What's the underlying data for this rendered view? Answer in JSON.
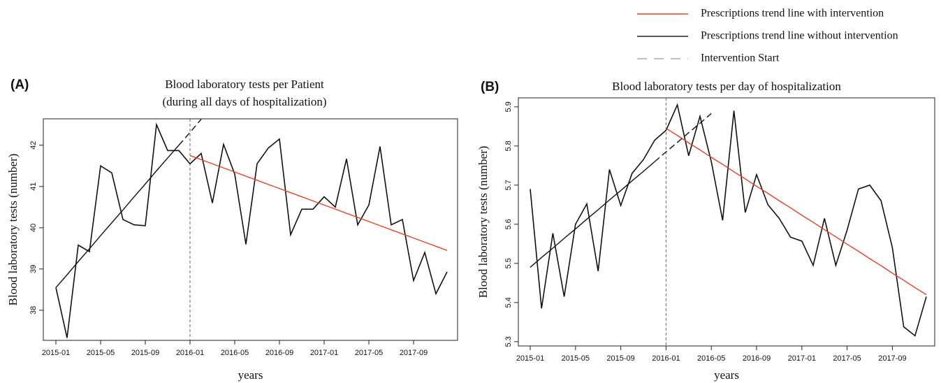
{
  "legend": [
    {
      "label": "Prescriptions trend line with intervention",
      "color": "#e8412c",
      "dash": false
    },
    {
      "label": "Prescriptions trend line without intervention",
      "color": "#222222",
      "dash": false
    },
    {
      "label": "Intervention Start",
      "color": "#aaaaaa",
      "dash": true
    }
  ],
  "chart_data": [
    {
      "type": "line",
      "panel": "(A)",
      "title": [
        "Blood laboratory tests per Patient",
        "(during all days of hospitalization)"
      ],
      "xlabel": "years",
      "ylabel": "Blood laboratory tests (number)",
      "categories": [
        "2015-01",
        null,
        null,
        null,
        "2015-05",
        null,
        null,
        null,
        "2015-09",
        null,
        null,
        null,
        "2016-01",
        null,
        null,
        null,
        "2016-05",
        null,
        null,
        null,
        "2016-09",
        null,
        null,
        null,
        "2017-01",
        null,
        null,
        null,
        "2017-05",
        null,
        null,
        null,
        "2017-09",
        null,
        null,
        null
      ],
      "intervention": "2016-01",
      "ylim": [
        37.27,
        42.64
      ],
      "yticks": [
        38,
        39,
        40,
        41,
        42
      ],
      "series": [
        {
          "color": "#111111",
          "dash": false,
          "values": [
            38.55,
            37.33,
            39.58,
            39.42,
            41.5,
            41.33,
            40.2,
            40.07,
            40.05,
            42.5,
            41.87,
            41.87,
            41.55,
            41.8,
            40.6,
            42.02,
            41.3,
            39.6,
            41.55,
            41.93,
            42.15,
            39.83,
            40.45,
            40.45,
            40.75,
            40.5,
            41.67,
            40.07,
            40.55,
            41.97,
            40.07,
            40.2,
            38.72,
            39.4,
            38.4,
            38.93
          ]
        },
        {
          "color": "#e8412c",
          "dash": false,
          "values": [
            null,
            null,
            null,
            null,
            null,
            null,
            null,
            null,
            null,
            null,
            null,
            null,
            41.75,
            41.65,
            41.55,
            41.45,
            41.35,
            41.25,
            41.15,
            41.05,
            40.95,
            40.85,
            40.75,
            40.65,
            40.55,
            40.45,
            40.35,
            40.25,
            40.15,
            40.05,
            39.95,
            39.85,
            39.75,
            39.65,
            39.55,
            39.45
          ]
        },
        {
          "color": "#111111",
          "dash": false,
          "values": [
            38.55,
            38.86,
            39.18,
            39.49,
            39.81,
            40.12,
            40.43,
            40.75,
            41.06,
            41.38,
            41.69,
            42.0,
            null,
            null,
            null,
            null,
            null,
            null,
            null,
            null,
            null,
            null,
            null,
            null,
            null,
            null,
            null,
            null,
            null,
            null,
            null,
            null,
            null,
            null,
            null,
            null
          ]
        },
        {
          "color": "#111111",
          "dash": true,
          "values": [
            null,
            null,
            null,
            null,
            null,
            null,
            null,
            null,
            null,
            null,
            null,
            42.0,
            42.31,
            42.63,
            null,
            null,
            null,
            null,
            null,
            null,
            null,
            null,
            null,
            null,
            null,
            null,
            null,
            null,
            null,
            null,
            null,
            null,
            null,
            null,
            null,
            null
          ]
        }
      ]
    },
    {
      "type": "line",
      "panel": "(B)",
      "title": [
        "Blood laboratory tests per day of hospitalization"
      ],
      "xlabel": "years",
      "ylabel": "Blood laboratory tests (number)",
      "categories": [
        "2015-01",
        null,
        null,
        null,
        "2015-05",
        null,
        null,
        null,
        "2015-09",
        null,
        null,
        null,
        "2016-01",
        null,
        null,
        null,
        "2016-05",
        null,
        null,
        null,
        "2016-09",
        null,
        null,
        null,
        "2017-01",
        null,
        null,
        null,
        "2017-05",
        null,
        null,
        null,
        "2017-09",
        null,
        null,
        null
      ],
      "intervention": "2016-01",
      "ylim": [
        5.289,
        5.923
      ],
      "yticks": [
        5.3,
        5.4,
        5.5,
        5.6,
        5.7,
        5.8,
        5.9
      ],
      "series": [
        {
          "color": "#111111",
          "dash": false,
          "values": [
            5.69,
            5.385,
            5.577,
            5.415,
            5.6,
            5.652,
            5.48,
            5.74,
            5.648,
            5.73,
            5.765,
            5.815,
            5.84,
            5.905,
            5.775,
            5.876,
            5.76,
            5.61,
            5.89,
            5.63,
            5.727,
            5.65,
            5.615,
            5.567,
            5.557,
            5.495,
            5.615,
            5.495,
            5.585,
            5.69,
            5.7,
            5.66,
            5.54,
            5.338,
            5.315,
            5.415
          ]
        },
        {
          "color": "#e8412c",
          "dash": false,
          "values": [
            null,
            null,
            null,
            null,
            null,
            null,
            null,
            null,
            null,
            null,
            null,
            null,
            5.845,
            5.827,
            5.808,
            5.79,
            5.771,
            5.753,
            5.734,
            5.716,
            5.697,
            5.679,
            5.66,
            5.642,
            5.623,
            5.605,
            5.586,
            5.568,
            5.549,
            5.531,
            5.512,
            5.494,
            5.475,
            5.457,
            5.438,
            5.42
          ]
        },
        {
          "color": "#111111",
          "dash": false,
          "values": [
            5.49,
            5.515,
            5.539,
            5.564,
            5.588,
            5.613,
            5.637,
            5.662,
            5.686,
            5.711,
            5.735,
            5.76,
            null,
            null,
            null,
            null,
            null,
            null,
            null,
            null,
            null,
            null,
            null,
            null,
            null,
            null,
            null,
            null,
            null,
            null,
            null,
            null,
            null,
            null,
            null,
            null
          ]
        },
        {
          "color": "#111111",
          "dash": true,
          "values": [
            null,
            null,
            null,
            null,
            null,
            null,
            null,
            null,
            null,
            null,
            null,
            5.76,
            5.785,
            5.809,
            5.834,
            5.858,
            5.883,
            null,
            null,
            null,
            null,
            null,
            null,
            null,
            null,
            null,
            null,
            null,
            null,
            null,
            null,
            null,
            null,
            null,
            null,
            null
          ]
        }
      ]
    }
  ]
}
